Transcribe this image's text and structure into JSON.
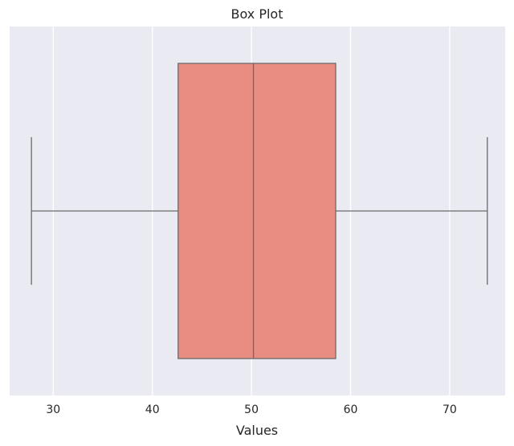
{
  "chart_data": {
    "type": "box",
    "title": "Box Plot",
    "xlabel": "Values",
    "ylabel": "",
    "orientation": "horizontal",
    "xlim": [
      25.6,
      75.6
    ],
    "x_ticks": [
      30,
      40,
      50,
      60,
      70
    ],
    "x_tick_labels": [
      "30",
      "40",
      "50",
      "60",
      "70"
    ],
    "grid": true,
    "style": {
      "background": "#EAEAF2",
      "grid_color": "#FFFFFF",
      "box_fill": "#E98C82",
      "line_color": "#6B6B6B"
    },
    "boxes": [
      {
        "whisker_low": 27.8,
        "q1": 42.6,
        "median": 50.2,
        "q3": 58.5,
        "whisker_high": 73.8
      }
    ]
  }
}
